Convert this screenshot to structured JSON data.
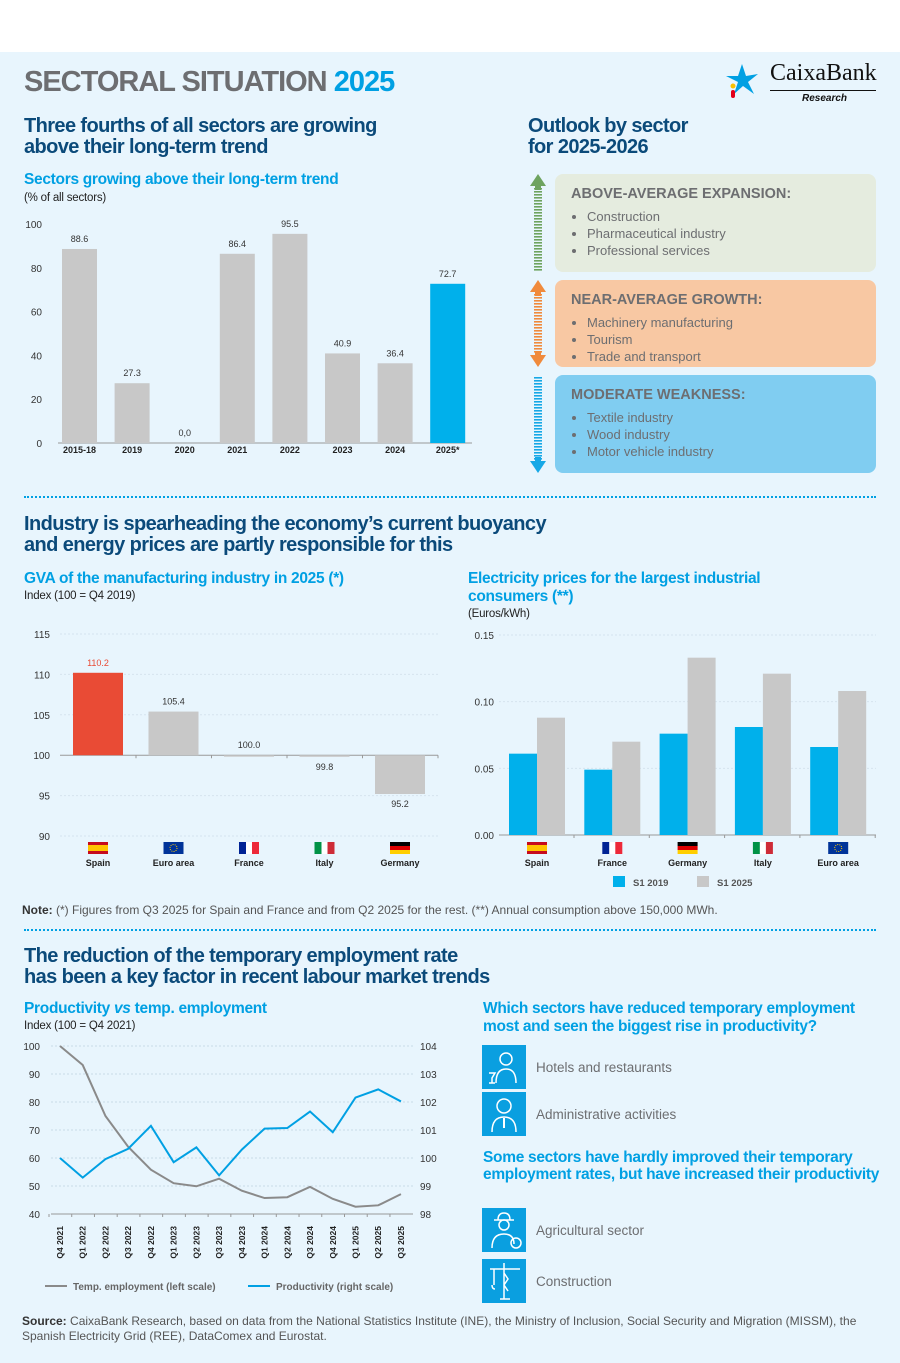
{
  "header": {
    "title_main": "SECTORAL SITUATION",
    "title_year": "2025",
    "logo_text": "CaixaBank",
    "logo_sub": "Research"
  },
  "section1": {
    "title_line1": "Three fourths of all sectors are growing",
    "title_line2": "above their long-term trend",
    "chart_title": "Sectors growing above their long-term trend",
    "chart_unit": "(% of all sectors)"
  },
  "outlook": {
    "title_line1": "Outlook by sector",
    "title_line2": "for 2025-2026",
    "groups": [
      {
        "heading": "ABOVE-AVERAGE EXPANSION:",
        "color": "#6ea35f",
        "bg": "#e5ecdf",
        "items": [
          "Construction",
          "Pharmaceutical industry",
          "Professional services"
        ]
      },
      {
        "heading": "NEAR-AVERAGE GROWTH:",
        "color": "#f08a3c",
        "bg": "#f8c8a3",
        "items": [
          "Machinery manufacturing",
          "Tourism",
          "Trade and transport"
        ]
      },
      {
        "heading": "MODERATE WEAKNESS:",
        "color": "#16a8e6",
        "bg": "#80cdf1",
        "items": [
          "Textile industry",
          "Wood industry",
          "Motor vehicle industry"
        ]
      }
    ]
  },
  "section2": {
    "title_line1": "Industry is spearheading the economy’s current buoyancy",
    "title_line2": "and energy prices are partly responsible for this",
    "gva_title": "GVA of the manufacturing industry in 2025 (*)",
    "gva_unit": "Index (100 = Q4 2019)",
    "elec_title_line1": "Electricity prices for the largest industrial",
    "elec_title_line2": "consumers (**)",
    "elec_unit": "(Euros/kWh)",
    "note_label": "Note:",
    "note_text": " (*) Figures from Q3 2025 for Spain and France and from Q2 2025 for the rest. (**) Annual consumption above 150,000 MWh."
  },
  "section3": {
    "title_line1": "The reduction of the temporary employment rate",
    "title_line2": "has been a key factor in recent labour market trends",
    "line_title_a": "Productivity ",
    "line_title_vs": "vs",
    "line_title_b": " temp. employment",
    "line_unit": "Index (100 = Q4 2021)",
    "q1": "Which sectors have reduced temporary employment most and seen the biggest rise in productivity?",
    "q1_sectors": [
      {
        "label": "Hotels and restaurants",
        "icon": "waiter-icon"
      },
      {
        "label": "Administrative activities",
        "icon": "office-worker-icon"
      }
    ],
    "q2": "Some sectors have hardly improved their temporary employment rates, but have increased their productivity",
    "q2_sectors": [
      {
        "label": "Agricultural sector",
        "icon": "farmer-icon"
      },
      {
        "label": "Construction",
        "icon": "crane-icon"
      }
    ]
  },
  "footer": {
    "source_label": "Source:",
    "source_text": " CaixaBank Research, based on data from the National Statistics Institute (INE), the Ministry of Inclusion, Social Security and Migration (MISSM), the Spanish Electricity Grid (REE), DataComex and Eurostat."
  },
  "colors": {
    "dark_blue": "#0b4a7a",
    "accent_blue": "#00a0e3",
    "gray_bar": "#c8c8c8",
    "red_bar": "#e94b35",
    "cyan_bar": "#00b0eb"
  },
  "chart_data": [
    {
      "type": "bar",
      "categories": [
        "2015-18",
        "2019",
        "2020",
        "2021",
        "2022",
        "2023",
        "2024",
        "2025*"
      ],
      "values": [
        88.6,
        27.3,
        0.0,
        86.4,
        95.5,
        40.9,
        36.4,
        72.7
      ],
      "labels": [
        "88.6",
        "27.3",
        "0,0",
        "86.4",
        "95.5",
        "40.9",
        "36.4",
        "72.7"
      ],
      "yticks": [
        "0",
        "20",
        "40",
        "60",
        "80",
        "100"
      ],
      "ylim": [
        0,
        100
      ],
      "highlight": "2025*"
    },
    {
      "type": "bar",
      "categories": [
        "Spain",
        "Euro area",
        "France",
        "Italy",
        "Germany"
      ],
      "values": [
        110.2,
        105.4,
        100.0,
        99.8,
        95.2
      ],
      "labels": [
        "110.2",
        "105.4",
        "100.0",
        "99.8",
        "95.2"
      ],
      "baseline": 100,
      "ylim": [
        90,
        115
      ],
      "yticks": [
        "90",
        "95",
        "100",
        "105",
        "110",
        "115"
      ],
      "highlight": "Spain"
    },
    {
      "type": "bar",
      "categories": [
        "Spain",
        "France",
        "Germany",
        "Italy",
        "Euro area"
      ],
      "ylim": [
        0,
        0.15
      ],
      "yticks": [
        "0.00",
        "0.05",
        "0.10",
        "0.15"
      ],
      "series": [
        {
          "name": "S1 2019",
          "values": [
            0.061,
            0.049,
            0.076,
            0.081,
            0.066
          ]
        },
        {
          "name": "S1 2025",
          "values": [
            0.088,
            0.07,
            0.133,
            0.121,
            0.108
          ]
        }
      ]
    },
    {
      "type": "line",
      "x": [
        "Q4 2021",
        "Q1 2022",
        "Q2 2022",
        "Q3 2022",
        "Q4 2022",
        "Q1 2023",
        "Q2 2023",
        "Q3 2023",
        "Q4 2023",
        "Q1 2024",
        "Q2 2024",
        "Q3 2024",
        "Q4 2024",
        "Q1 2025",
        "Q2 2025",
        "Q3 2025"
      ],
      "ylim_left": [
        40,
        100
      ],
      "yticks_left": [
        "40",
        "50",
        "60",
        "70",
        "80",
        "90",
        "100"
      ],
      "ylim_right": [
        98,
        104
      ],
      "yticks_right": [
        "98",
        "99",
        "100",
        "101",
        "102",
        "103",
        "104"
      ],
      "series": [
        {
          "name": "Temp. employment (left scale)",
          "axis": "left",
          "values": [
            100,
            93.2,
            75,
            64,
            55.8,
            51,
            49.9,
            52.6,
            48.3,
            45.7,
            46,
            49.7,
            45.4,
            42.6,
            43.1,
            47.1
          ]
        },
        {
          "name": "Productivity (right scale)",
          "axis": "right",
          "values": [
            100,
            99.3,
            99.96,
            100.33,
            101.15,
            99.85,
            100.38,
            99.38,
            100.3,
            101.05,
            101.07,
            101.66,
            100.92,
            102.16,
            102.45,
            102.02
          ]
        }
      ]
    }
  ]
}
